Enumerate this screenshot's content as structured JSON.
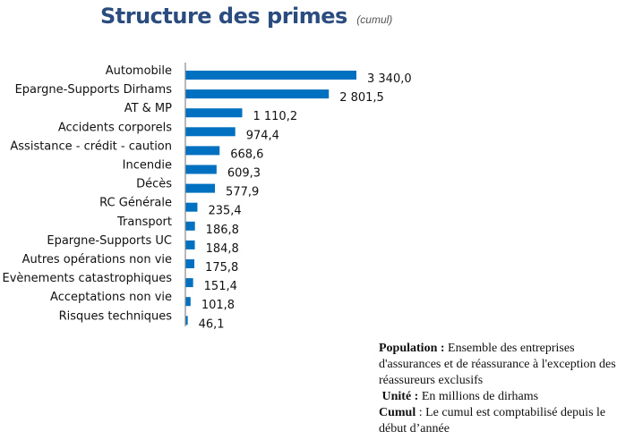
{
  "chart_data": {
    "type": "bar",
    "orientation": "horizontal",
    "title": "Structure des primes",
    "subtitle": "(cumul)",
    "categories": [
      "Automobile",
      "Epargne-Supports Dirhams",
      "AT & MP",
      "Accidents corporels",
      "Assistance - crédit - caution",
      "Incendie",
      "Décès",
      "RC Générale",
      "Transport",
      "Epargne-Supports UC",
      "Autres opérations non vie",
      "Evènements catastrophiques",
      "Acceptations non vie",
      "Risques techniques"
    ],
    "values": [
      3340.0,
      2801.5,
      1110.2,
      974.4,
      668.6,
      609.3,
      577.9,
      235.4,
      186.8,
      184.8,
      175.8,
      151.4,
      101.8,
      46.1
    ],
    "value_labels": [
      "3 340,0",
      "2 801,5",
      "1 110,2",
      "974,4",
      "668,6",
      "609,3",
      "577,9",
      "235,4",
      "186,8",
      "184,8",
      "175,8",
      "151,4",
      "101,8",
      "46,1"
    ],
    "bar_color": "#0070c0",
    "grid": false,
    "legend": "none"
  },
  "note": {
    "population_label": "Population :",
    "population_text": " Ensemble des entreprises d'assurances et de réassurance à l'exception des réassureurs exclusifs",
    "unit_label": "Unité :",
    "unit_text": " En millions de dirhams",
    "cumul_label": "Cumul",
    "cumul_text": " : Le cumul est comptabilisé depuis le début d’année"
  }
}
